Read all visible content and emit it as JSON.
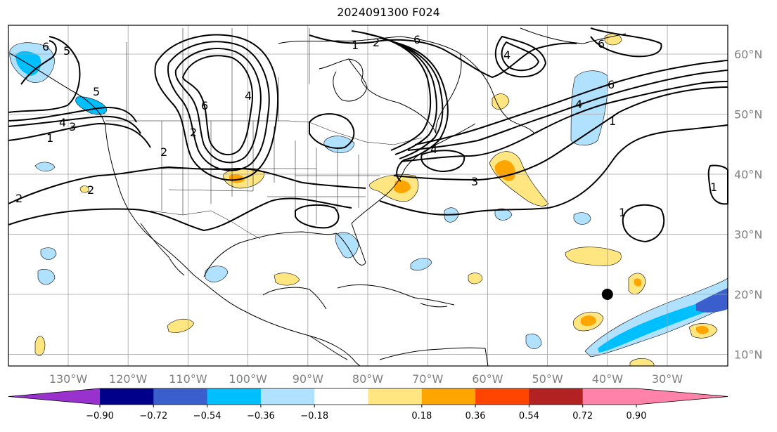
{
  "title": "2024091300 F024",
  "lon_labels": [
    "130°W",
    "120°W",
    "110°W",
    "100°W",
    "90°W",
    "80°W",
    "70°W",
    "60°W",
    "50°W",
    "40°W",
    "30°W"
  ],
  "lat_labels": [
    "60°N",
    "50°N",
    "40°N",
    "30°N",
    "20°N",
    "10°N"
  ],
  "contour_labels": [
    "1",
    "2",
    "3",
    "4",
    "5",
    "6"
  ],
  "colorbar": {
    "labels": [
      "−0.90",
      "−0.72",
      "−0.54",
      "−0.36",
      "−0.18",
      "0.18",
      "0.36",
      "0.54",
      "0.72",
      "0.90"
    ],
    "colors": [
      "#9932cc",
      "#00008b",
      "#3a5fcd",
      "#00bfff",
      "#b0e2ff",
      "#ffffff",
      "#ffe680",
      "#ffa500",
      "#ff4500",
      "#b22222",
      "#ff82ab"
    ]
  },
  "marker": {
    "lon": -40,
    "lat": 20
  },
  "colors": {
    "frame": "#000000",
    "grid": "#a0a0a0",
    "label": "#808080"
  }
}
